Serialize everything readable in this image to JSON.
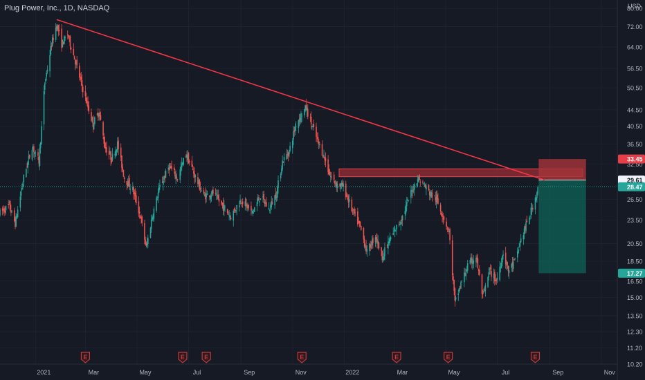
{
  "header": {
    "symbol_title": "Plug Power, Inc., 1D, NASDAQ"
  },
  "colors": {
    "background": "#161a25",
    "grid": "#1e222d",
    "axis_text": "#b2b5be",
    "up": "#26a69a",
    "down": "#ef5350",
    "trendline": "#f23645",
    "stop_zone": "#a4343a",
    "target_zone": "#0e5a52",
    "earnings_marker": "#c23a3a"
  },
  "chart_data": {
    "type": "candlestick",
    "title": "Plug Power, Inc., 1D, NASDAQ",
    "currency": "USD",
    "y_scale": "log",
    "ylim": [
      10.2,
      84
    ],
    "y_ticks": [
      80.0,
      72.0,
      64.0,
      56.5,
      50.5,
      44.5,
      40.5,
      36.5,
      32.5,
      26.5,
      23.5,
      20.5,
      18.5,
      16.5,
      15.0,
      13.5,
      12.3,
      11.2,
      10.2
    ],
    "y_tick_labels": [
      "80.00",
      "72.00",
      "64.00",
      "56.50",
      "50.50",
      "44.50",
      "40.50",
      "36.50",
      "32.50",
      "26.50",
      "23.50",
      "20.50",
      "18.50",
      "16.50",
      "15.00",
      "13.50",
      "12.30",
      "11.20",
      "10.20"
    ],
    "x_ticks": [
      "2021",
      "Mar",
      "May",
      "Jul",
      "Sep",
      "Nov",
      "2022",
      "Mar",
      "May",
      "Jul",
      "Sep",
      "Nov"
    ],
    "x_tick_dates": [
      "2021-01-01",
      "2021-03-01",
      "2021-05-01",
      "2021-07-01",
      "2021-09-01",
      "2021-11-01",
      "2022-01-01",
      "2022-03-01",
      "2022-05-01",
      "2022-07-01",
      "2022-09-01",
      "2022-11-01"
    ],
    "xlim": [
      "2020-11-20",
      "2022-11-20"
    ],
    "price_labels": [
      {
        "value": 33.45,
        "text": "33.45",
        "role": "stop"
      },
      {
        "value": 29.61,
        "text": "29.61",
        "role": "entry"
      },
      {
        "value": 28.47,
        "text": "28.47",
        "role": "last"
      },
      {
        "value": 17.27,
        "text": "17.27",
        "role": "target"
      }
    ],
    "last_price": 28.47,
    "anchors": [
      [
        "2020-11-20",
        24.5
      ],
      [
        "2020-12-01",
        25.5
      ],
      [
        "2020-12-08",
        23.0
      ],
      [
        "2020-12-18",
        30.0
      ],
      [
        "2020-12-28",
        36.0
      ],
      [
        "2021-01-05",
        33.0
      ],
      [
        "2021-01-12",
        52.0
      ],
      [
        "2021-01-20",
        65.0
      ],
      [
        "2021-01-26",
        73.0
      ],
      [
        "2021-02-01",
        65.0
      ],
      [
        "2021-02-08",
        69.0
      ],
      [
        "2021-02-16",
        60.0
      ],
      [
        "2021-02-24",
        52.0
      ],
      [
        "2021-03-03",
        46.0
      ],
      [
        "2021-03-10",
        41.0
      ],
      [
        "2021-03-17",
        44.0
      ],
      [
        "2021-03-24",
        36.0
      ],
      [
        "2021-04-01",
        33.5
      ],
      [
        "2021-04-08",
        36.5
      ],
      [
        "2021-04-16",
        30.0
      ],
      [
        "2021-04-26",
        28.0
      ],
      [
        "2021-05-05",
        24.0
      ],
      [
        "2021-05-12",
        20.0
      ],
      [
        "2021-05-19",
        24.0
      ],
      [
        "2021-05-28",
        28.5
      ],
      [
        "2021-06-08",
        32.0
      ],
      [
        "2021-06-18",
        30.0
      ],
      [
        "2021-06-28",
        34.5
      ],
      [
        "2021-07-08",
        30.5
      ],
      [
        "2021-07-19",
        27.0
      ],
      [
        "2021-07-30",
        27.5
      ],
      [
        "2021-08-10",
        25.5
      ],
      [
        "2021-08-20",
        24.0
      ],
      [
        "2021-09-01",
        26.5
      ],
      [
        "2021-09-14",
        24.5
      ],
      [
        "2021-09-24",
        27.0
      ],
      [
        "2021-10-04",
        25.0
      ],
      [
        "2021-10-13",
        27.5
      ],
      [
        "2021-10-20",
        33.0
      ],
      [
        "2021-10-28",
        35.0
      ],
      [
        "2021-11-05",
        41.0
      ],
      [
        "2021-11-12",
        43.5
      ],
      [
        "2021-11-17",
        45.0
      ],
      [
        "2021-11-24",
        40.5
      ],
      [
        "2021-12-01",
        37.0
      ],
      [
        "2021-12-08",
        34.0
      ],
      [
        "2021-12-15",
        30.5
      ],
      [
        "2021-12-22",
        29.0
      ],
      [
        "2021-12-31",
        28.5
      ],
      [
        "2022-01-10",
        25.0
      ],
      [
        "2022-01-20",
        22.5
      ],
      [
        "2022-01-28",
        19.5
      ],
      [
        "2022-02-07",
        21.5
      ],
      [
        "2022-02-15",
        19.0
      ],
      [
        "2022-02-24",
        21.0
      ],
      [
        "2022-03-04",
        22.5
      ],
      [
        "2022-03-11",
        24.0
      ],
      [
        "2022-03-21",
        27.5
      ],
      [
        "2022-03-29",
        30.0
      ],
      [
        "2022-04-04",
        29.0
      ],
      [
        "2022-04-12",
        27.5
      ],
      [
        "2022-04-20",
        26.5
      ],
      [
        "2022-04-28",
        24.0
      ],
      [
        "2022-05-05",
        22.0
      ],
      [
        "2022-05-12",
        14.5
      ],
      [
        "2022-05-18",
        16.0
      ],
      [
        "2022-05-27",
        18.0
      ],
      [
        "2022-06-06",
        19.0
      ],
      [
        "2022-06-14",
        15.0
      ],
      [
        "2022-06-22",
        17.5
      ],
      [
        "2022-06-30",
        16.5
      ],
      [
        "2022-07-08",
        19.5
      ],
      [
        "2022-07-14",
        17.5
      ],
      [
        "2022-07-22",
        18.5
      ],
      [
        "2022-07-29",
        21.0
      ],
      [
        "2022-08-05",
        23.0
      ],
      [
        "2022-08-12",
        25.5
      ],
      [
        "2022-08-19",
        28.5
      ]
    ],
    "trendline": {
      "from": [
        "2021-01-26",
        75.0
      ],
      "to": [
        "2022-08-26",
        29.61
      ],
      "color": "#f23645"
    },
    "resistance_zone": {
      "from": "2021-12-26",
      "to": "2022-10-10",
      "y1": 30.2,
      "y2": 31.6
    },
    "position": {
      "from": "2022-08-19",
      "to": "2022-10-14",
      "entry": 29.61,
      "stop": 33.45,
      "target": 17.27
    },
    "earnings_dates": [
      "2021-03-01",
      "2021-06-24",
      "2021-07-22",
      "2021-11-12",
      "2022-03-04",
      "2022-05-04",
      "2022-08-15"
    ],
    "earnings_label": "E"
  }
}
